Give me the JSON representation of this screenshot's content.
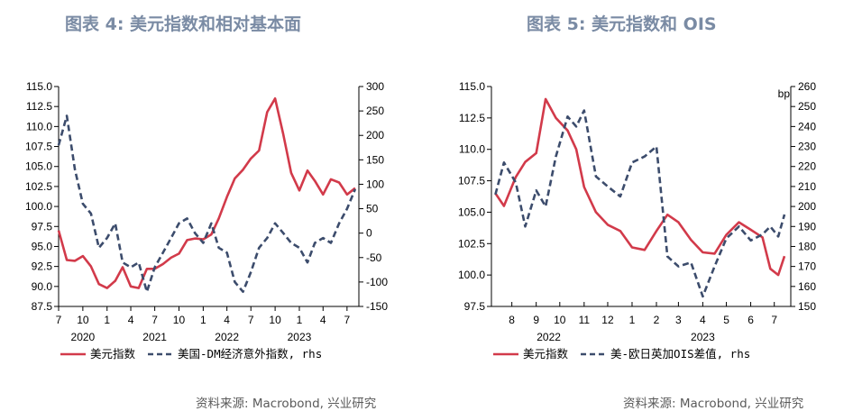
{
  "left": {
    "title": "图表 4: 美元指数和相对基本面",
    "source": "资料来源: Macrobond, 兴业研究"
  },
  "right": {
    "title": "图表 5: 美元指数和 OIS",
    "source": "资料来源: Macrobond, 兴业研究"
  },
  "colors": {
    "usd": "#d23a4a",
    "other": "#3c4c6c",
    "title": "#7a8ba4"
  },
  "chart_data": [
    {
      "type": "line",
      "title": "图表 4: 美元指数和相对基本面",
      "x_ticks": [
        "7",
        "10",
        "1",
        "4",
        "7",
        "10",
        "1",
        "4",
        "7",
        "10",
        "1",
        "4",
        "7"
      ],
      "x_years": [
        "2020",
        "2021",
        "2022",
        "2023"
      ],
      "ylim_left": [
        87.5,
        115.0
      ],
      "y_ticks_left": [
        "115.0",
        "112.5",
        "110.0",
        "107.5",
        "105.0",
        "102.5",
        "100.0",
        "97.5",
        "95.0",
        "92.5",
        "90.0",
        "87.5"
      ],
      "ylim_right": [
        -150,
        300
      ],
      "y_ticks_right": [
        "300",
        "250",
        "200",
        "150",
        "100",
        "50",
        "0",
        "-50",
        "-100",
        "-150"
      ],
      "grid": false,
      "legend_position": "bottom",
      "series": [
        {
          "name": "美元指数",
          "axis": "left",
          "style": "solid",
          "x": [
            "2020-07",
            "2020-08",
            "2020-09",
            "2020-10",
            "2020-11",
            "2020-12",
            "2021-01",
            "2021-02",
            "2021-03",
            "2021-04",
            "2021-05",
            "2021-06",
            "2021-07",
            "2021-08",
            "2021-09",
            "2021-10",
            "2021-11",
            "2021-12",
            "2022-01",
            "2022-02",
            "2022-03",
            "2022-04",
            "2022-05",
            "2022-06",
            "2022-07",
            "2022-08",
            "2022-09",
            "2022-10",
            "2022-11",
            "2022-12",
            "2023-01",
            "2023-02",
            "2023-03",
            "2023-04",
            "2023-05",
            "2023-06",
            "2023-07",
            "2023-08"
          ],
          "values": [
            97.0,
            93.3,
            93.2,
            93.8,
            92.5,
            90.3,
            89.8,
            90.7,
            92.4,
            90.0,
            89.8,
            92.2,
            92.2,
            92.8,
            93.6,
            94.1,
            95.8,
            96.0,
            95.9,
            96.5,
            98.5,
            101.2,
            103.5,
            104.6,
            106.0,
            107.0,
            111.8,
            113.5,
            109.0,
            104.2,
            102.0,
            104.5,
            103.2,
            101.5,
            103.4,
            103.0,
            101.5,
            102.3
          ]
        },
        {
          "name": "美国-DM经济意外指数, rhs",
          "axis": "right",
          "style": "dashed",
          "x": [
            "2020-07",
            "2020-08",
            "2020-09",
            "2020-10",
            "2020-11",
            "2020-12",
            "2021-01",
            "2021-02",
            "2021-03",
            "2021-04",
            "2021-05",
            "2021-06",
            "2021-07",
            "2021-08",
            "2021-09",
            "2021-10",
            "2021-11",
            "2021-12",
            "2022-01",
            "2022-02",
            "2022-03",
            "2022-04",
            "2022-05",
            "2022-06",
            "2022-07",
            "2022-08",
            "2022-09",
            "2022-10",
            "2022-11",
            "2022-12",
            "2023-01",
            "2023-02",
            "2023-03",
            "2023-04",
            "2023-05",
            "2023-06",
            "2023-07",
            "2023-08"
          ],
          "values": [
            180,
            240,
            130,
            60,
            40,
            -30,
            -10,
            20,
            -60,
            -70,
            -60,
            -120,
            -70,
            -40,
            -10,
            20,
            30,
            0,
            -20,
            20,
            -30,
            -40,
            -100,
            -120,
            -80,
            -30,
            -10,
            20,
            0,
            -20,
            -30,
            -60,
            -20,
            -10,
            -20,
            20,
            50,
            90
          ]
        }
      ]
    },
    {
      "type": "line",
      "title": "图表 5: 美元指数和 OIS",
      "x_ticks": [
        "8",
        "9",
        "10",
        "11",
        "12",
        "1",
        "2",
        "3",
        "4",
        "5",
        "6",
        "7"
      ],
      "x_years": [
        "2022",
        "2023"
      ],
      "ylim_left": [
        97.5,
        115.0
      ],
      "y_ticks_left": [
        "115.0",
        "112.5",
        "110.0",
        "107.5",
        "105.0",
        "102.5",
        "100.0",
        "97.5"
      ],
      "ylim_right": [
        150,
        260
      ],
      "y_ticks_right": [
        "260",
        "250",
        "240",
        "230",
        "220",
        "210",
        "200",
        "190",
        "180",
        "170",
        "160",
        "150"
      ],
      "right_unit": "bp",
      "grid": false,
      "legend_position": "bottom",
      "series": [
        {
          "name": "美元指数",
          "axis": "left",
          "style": "solid",
          "x": [
            "2022-07-25",
            "2022-08-05",
            "2022-08-20",
            "2022-09-01",
            "2022-09-15",
            "2022-09-27",
            "2022-10-10",
            "2022-10-25",
            "2022-11-05",
            "2022-11-15",
            "2022-11-30",
            "2022-12-15",
            "2022-12-31",
            "2023-01-15",
            "2023-01-31",
            "2023-02-15",
            "2023-03-01",
            "2023-03-15",
            "2023-03-31",
            "2023-04-15",
            "2023-04-30",
            "2023-05-15",
            "2023-05-31",
            "2023-06-15",
            "2023-06-30",
            "2023-07-10",
            "2023-07-20",
            "2023-07-28"
          ],
          "values": [
            106.5,
            105.5,
            107.8,
            109.0,
            109.7,
            114.0,
            112.5,
            111.5,
            110.0,
            107.0,
            105.0,
            104.0,
            103.5,
            102.2,
            102.0,
            103.5,
            104.8,
            104.2,
            102.8,
            101.8,
            101.7,
            103.2,
            104.2,
            103.6,
            103.0,
            100.5,
            100.0,
            101.5
          ]
        },
        {
          "name": "美-欧日英加OIS差值, rhs",
          "axis": "right",
          "style": "dashed",
          "x": [
            "2022-07-25",
            "2022-08-05",
            "2022-08-20",
            "2022-09-01",
            "2022-09-15",
            "2022-09-27",
            "2022-10-10",
            "2022-10-25",
            "2022-11-05",
            "2022-11-15",
            "2022-11-30",
            "2022-12-15",
            "2022-12-31",
            "2023-01-15",
            "2023-01-31",
            "2023-02-15",
            "2023-03-01",
            "2023-03-15",
            "2023-03-31",
            "2023-04-15",
            "2023-04-30",
            "2023-05-15",
            "2023-05-31",
            "2023-06-15",
            "2023-06-30",
            "2023-07-10",
            "2023-07-20",
            "2023-07-28"
          ],
          "values": [
            206,
            222,
            212,
            190,
            208,
            200,
            225,
            245,
            240,
            248,
            215,
            210,
            205,
            222,
            225,
            230,
            175,
            170,
            172,
            155,
            170,
            184,
            190,
            183,
            186,
            190,
            185,
            196
          ]
        }
      ]
    }
  ]
}
